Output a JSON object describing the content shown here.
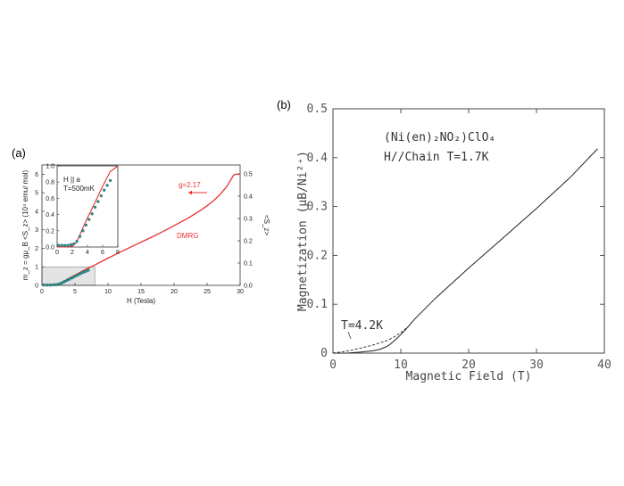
{
  "panel_a_label": "(a)",
  "panel_b_label": "(b)",
  "chart_data": [
    {
      "panel": "(a)",
      "type": "line",
      "xlabel": "H (Tesla)",
      "ylabel": "m_z = gμ_B <S_z> (10⁴ emu/ mol)",
      "ylabel_right": "<S_z>",
      "xlim": [
        0,
        30
      ],
      "ylim": [
        0,
        6.5
      ],
      "ylim_right": [
        0,
        0.54
      ],
      "xticks": [
        "0",
        "5",
        "10",
        "15",
        "20",
        "25",
        "30"
      ],
      "yticks": [
        "0",
        "1",
        "2",
        "3",
        "4",
        "5",
        "6"
      ],
      "yticks_right": [
        "0.0",
        "0.1",
        "0.2",
        "0.3",
        "0.4",
        "0.5"
      ],
      "annotations": {
        "g": "g=2.17",
        "dmrg": "DMRG"
      },
      "series": [
        {
          "name": "DMRG",
          "color": "#e8302e",
          "x": [
            0,
            1,
            2,
            2.5,
            3,
            4,
            5,
            6,
            7,
            8,
            10,
            12,
            14,
            16,
            18,
            20,
            22,
            24,
            25,
            26,
            27,
            28,
            28.5,
            29,
            29.3,
            30
          ],
          "y": [
            0,
            0,
            0.01,
            0.05,
            0.15,
            0.36,
            0.55,
            0.75,
            0.93,
            1.1,
            1.47,
            1.82,
            2.16,
            2.5,
            2.85,
            3.22,
            3.6,
            4.05,
            4.3,
            4.58,
            4.92,
            5.35,
            5.65,
            5.95,
            6.0,
            6.0
          ]
        },
        {
          "name": "data",
          "color": "#1a9a9a",
          "x": [
            0.3,
            0.8,
            1.3,
            1.8,
            2.2,
            2.6,
            3,
            3.4,
            3.8,
            4.2,
            4.6,
            5,
            5.4,
            5.8,
            6.2,
            6.6,
            7
          ],
          "y": [
            0.02,
            0.02,
            0.02,
            0.03,
            0.04,
            0.07,
            0.13,
            0.2,
            0.27,
            0.34,
            0.41,
            0.49,
            0.56,
            0.63,
            0.7,
            0.76,
            0.82
          ]
        }
      ],
      "inset": {
        "text_lines": [
          "H || a",
          "T=500mK"
        ],
        "xlim": [
          0,
          8
        ],
        "ylim": [
          0,
          1.0
        ],
        "xticks": [
          "0",
          "2",
          "4",
          "6",
          "8"
        ],
        "yticks": [
          "0.0",
          "0.2",
          "0.4",
          "0.6",
          "0.8",
          "1.0"
        ],
        "series": [
          {
            "name": "DMRG",
            "color": "#e8302e",
            "x": [
              0,
              1,
              2,
              2.5,
              3,
              3.5,
              4,
              5,
              6,
              7,
              8
            ],
            "y": [
              0,
              0,
              0.01,
              0.05,
              0.15,
              0.26,
              0.36,
              0.55,
              0.75,
              0.93,
              1.0
            ]
          },
          {
            "name": "data",
            "color": "#1a9a9a",
            "x": [
              0.2,
              0.6,
              1,
              1.4,
              1.8,
              2.2,
              2.6,
              3,
              3.4,
              3.8,
              4.2,
              4.6,
              5,
              5.4,
              5.8,
              6.2,
              6.6,
              7
            ],
            "y": [
              0.02,
              0.02,
              0.02,
              0.02,
              0.03,
              0.04,
              0.07,
              0.13,
              0.2,
              0.27,
              0.34,
              0.41,
              0.49,
              0.56,
              0.63,
              0.7,
              0.76,
              0.82
            ]
          }
        ]
      }
    },
    {
      "panel": "(b)",
      "type": "line",
      "xlabel": "Magnetic Field (T)",
      "ylabel": "Magnetization (μB/Ni²⁺)",
      "xlim": [
        0,
        40
      ],
      "ylim": [
        0,
        0.5
      ],
      "xticks": [
        "0",
        "10",
        "20",
        "30",
        "40"
      ],
      "yticks": [
        "0",
        "0.1",
        "0.2",
        "0.3",
        "0.4",
        "0.5"
      ],
      "annotations": {
        "compound": "(Ni(en)₂NO₂)ClO₄",
        "condition": "H//Chain  T=1.7K",
        "t42": "T=4.2K"
      },
      "series": [
        {
          "name": "T=1.7K",
          "color": "#222222",
          "dash": false,
          "x": [
            0,
            2,
            4,
            6,
            7,
            8,
            8.5,
            9,
            9.5,
            10,
            10.5,
            11,
            12,
            15,
            20,
            25,
            30,
            35,
            39
          ],
          "y": [
            0,
            0,
            0.002,
            0.005,
            0.008,
            0.014,
            0.019,
            0.025,
            0.031,
            0.038,
            0.045,
            0.053,
            0.069,
            0.111,
            0.174,
            0.235,
            0.296,
            0.36,
            0.418
          ]
        },
        {
          "name": "T=4.2K",
          "color": "#222222",
          "dash": true,
          "x": [
            0,
            2,
            4,
            6,
            8,
            9,
            10,
            11
          ],
          "y": [
            0,
            0.004,
            0.01,
            0.017,
            0.026,
            0.033,
            0.042,
            0.053
          ]
        }
      ]
    }
  ]
}
